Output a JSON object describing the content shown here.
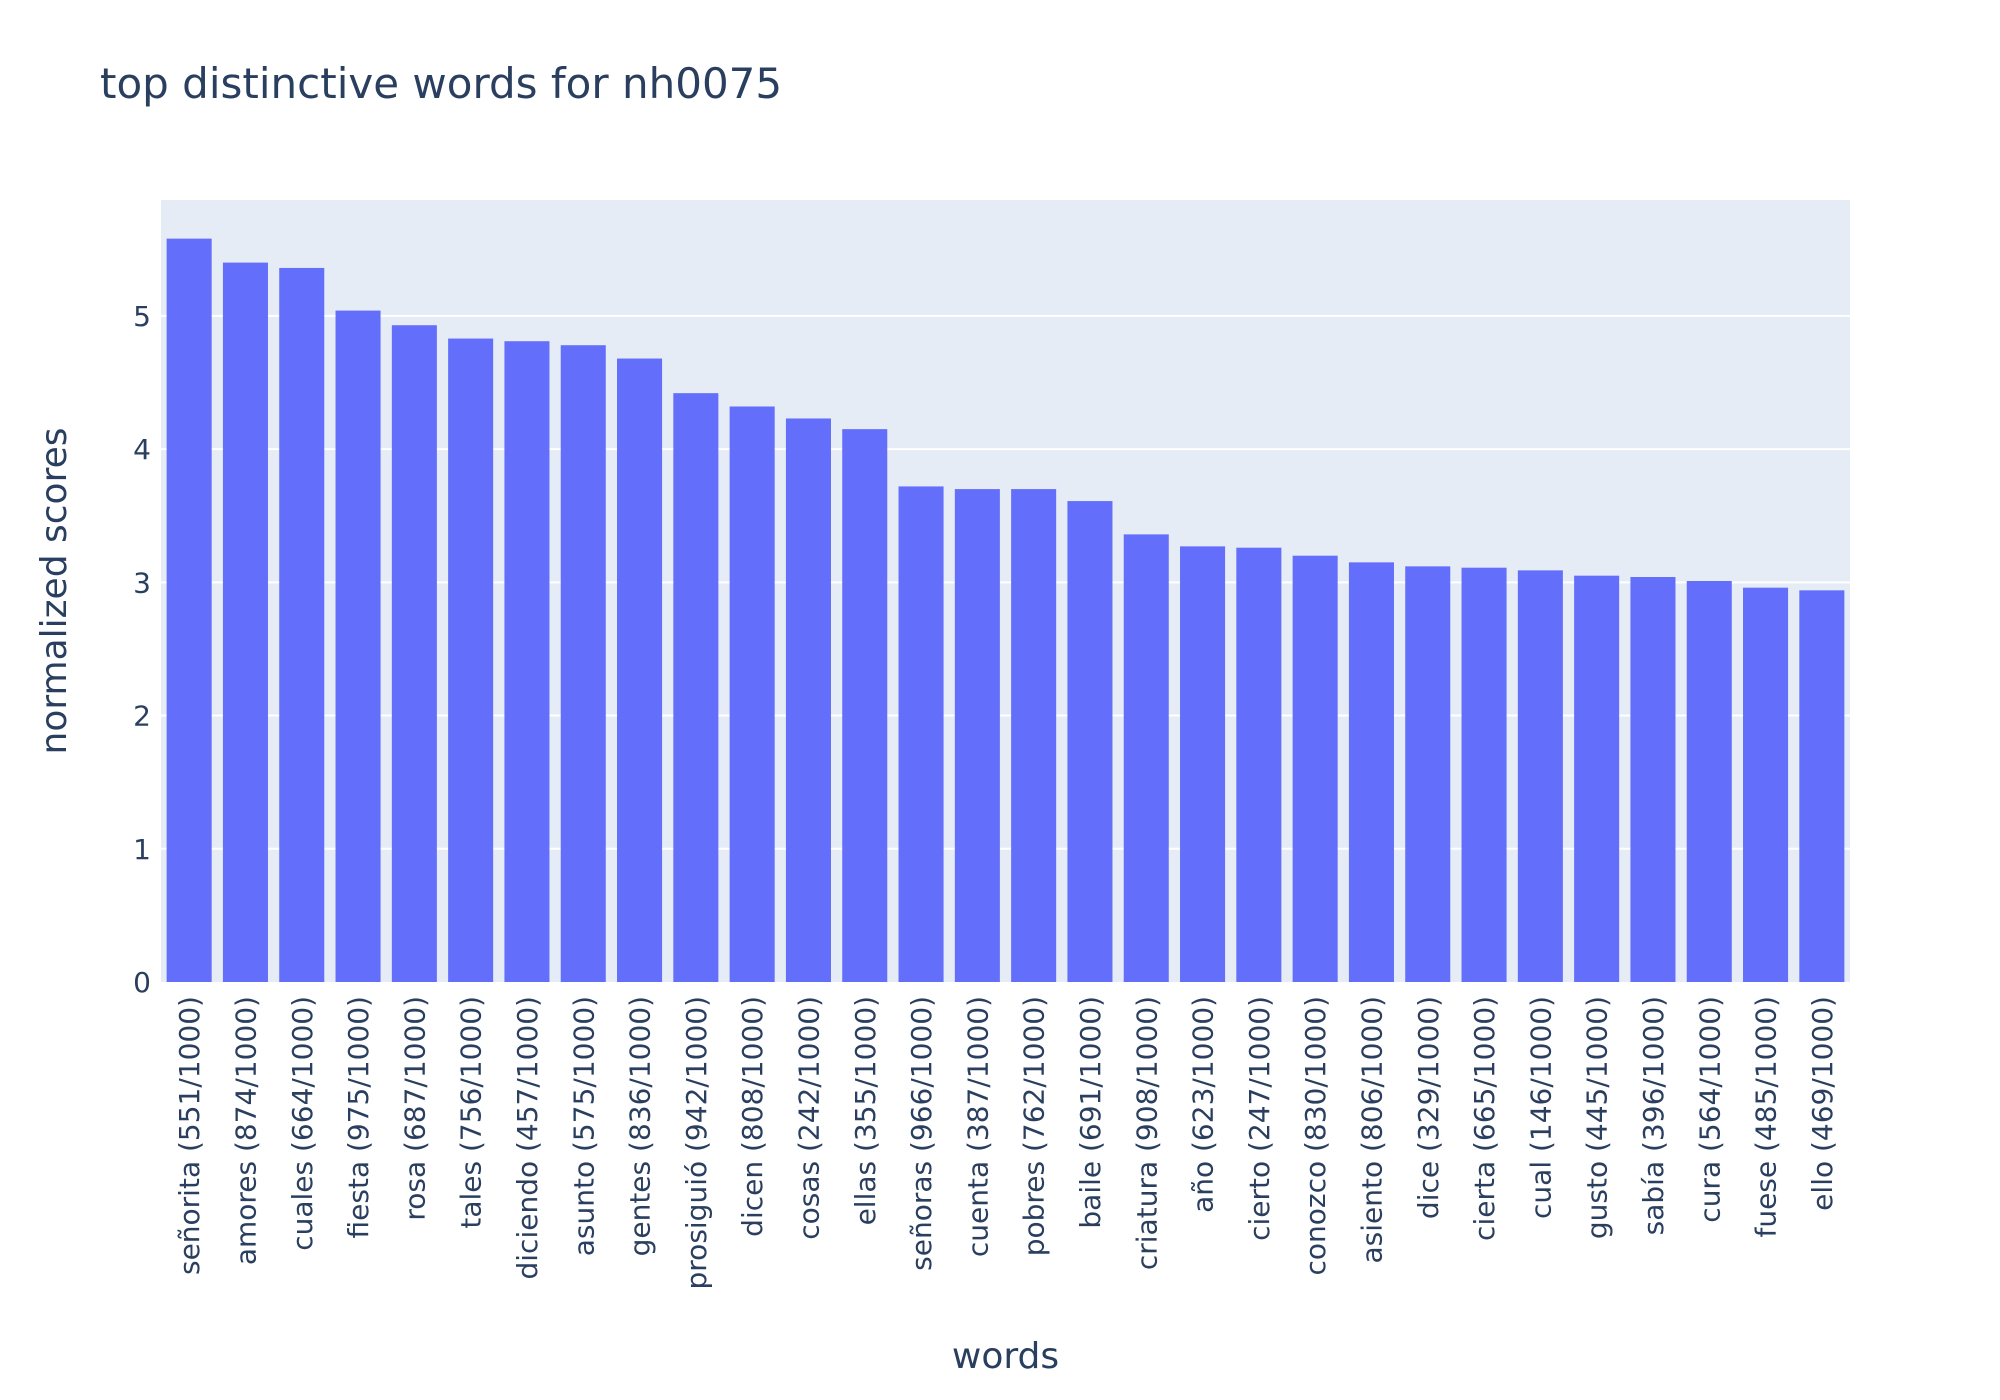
{
  "chart_data": {
    "type": "bar",
    "title": "top distinctive words for nh0075",
    "xlabel": "words",
    "ylabel": "normalized scores",
    "categories": [
      "señorita (551/1000)",
      "amores (874/1000)",
      "cuales (664/1000)",
      "fiesta (975/1000)",
      "rosa (687/1000)",
      "tales (756/1000)",
      "diciendo (457/1000)",
      "asunto (575/1000)",
      "gentes (836/1000)",
      "prosiguió (942/1000)",
      "dicen (808/1000)",
      "cosas (242/1000)",
      "ellas (355/1000)",
      "señoras (966/1000)",
      "cuenta (387/1000)",
      "pobres (762/1000)",
      "baile (691/1000)",
      "criatura (908/1000)",
      "año (623/1000)",
      "cierto (247/1000)",
      "conozco (830/1000)",
      "asiento (806/1000)",
      "dice (329/1000)",
      "cierta (665/1000)",
      "cual (146/1000)",
      "gusto (445/1000)",
      "sabía (396/1000)",
      "cura (564/1000)",
      "fuese (485/1000)",
      "ello (469/1000)"
    ],
    "values": [
      5.58,
      5.4,
      5.36,
      5.04,
      4.93,
      4.83,
      4.81,
      4.78,
      4.68,
      4.42,
      4.32,
      4.23,
      4.15,
      3.72,
      3.7,
      3.7,
      3.61,
      3.36,
      3.27,
      3.26,
      3.2,
      3.15,
      3.12,
      3.11,
      3.09,
      3.05,
      3.04,
      3.01,
      2.96,
      2.94
    ],
    "yticks": [
      "0",
      "1",
      "2",
      "3",
      "4",
      "5"
    ],
    "ylim": [
      0,
      5.87
    ],
    "grid": true,
    "colors": {
      "bar": "#636efa",
      "plot_bg": "#e5ecf6",
      "grid": "#ffffff",
      "text": "#2a3f5f"
    }
  }
}
